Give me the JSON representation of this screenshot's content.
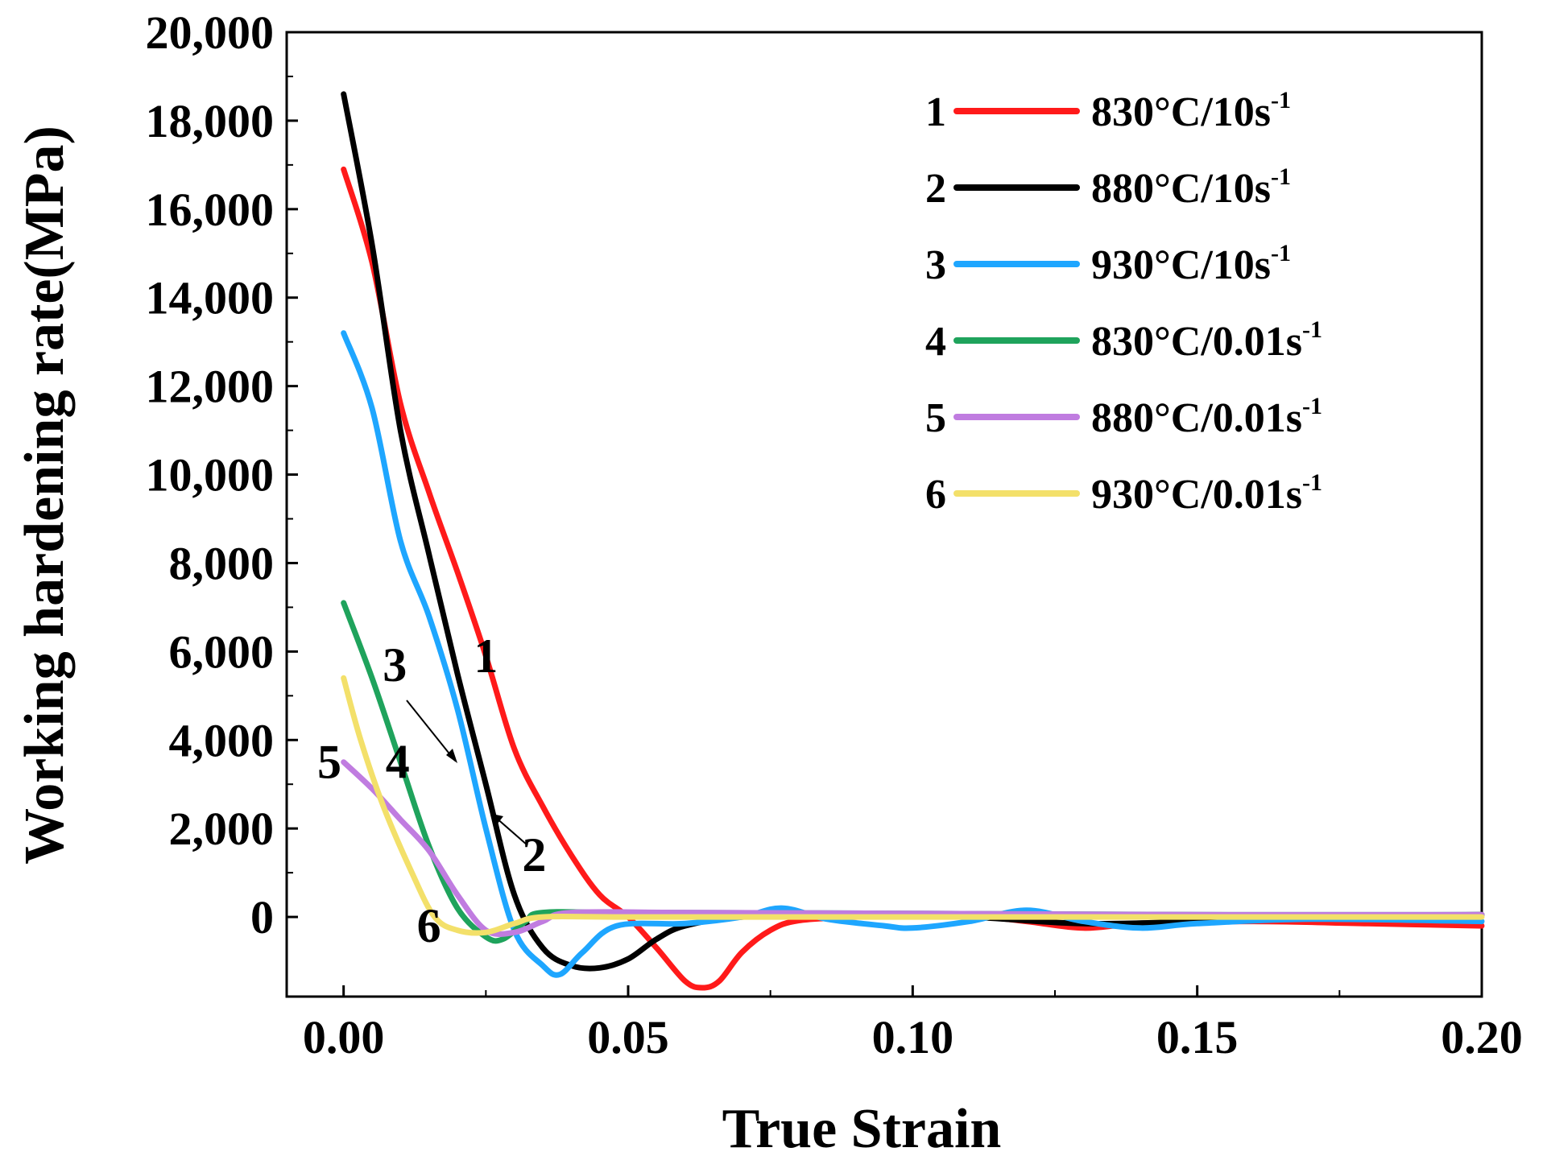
{
  "chart_data": {
    "type": "line",
    "xlabel": "True Strain",
    "ylabel": "Working hardening rate(MPa)",
    "xlim": [
      -0.01,
      0.2
    ],
    "ylim": [
      -1800,
      20000
    ],
    "xticks": [
      "0.00",
      "0.05",
      "0.10",
      "0.15",
      "0.20"
    ],
    "xtick_values": [
      0,
      0.05,
      0.1,
      0.15,
      0.2
    ],
    "yticks": [
      "0",
      "2,000",
      "4,000",
      "6,000",
      "8,000",
      "10,000",
      "12,000",
      "14,000",
      "16,000",
      "18,000",
      "20,000"
    ],
    "ytick_values": [
      0,
      2000,
      4000,
      6000,
      8000,
      10000,
      12000,
      14000,
      16000,
      18000,
      20000
    ],
    "legend_position": "top-right",
    "series": [
      {
        "id": "1",
        "name": "830°C/10s",
        "sup": "-1",
        "color": "#ff1a1a",
        "points": [
          [
            0,
            16900
          ],
          [
            0.005,
            14800
          ],
          [
            0.01,
            11600
          ],
          [
            0.015,
            9600
          ],
          [
            0.02,
            7800
          ],
          [
            0.025,
            5900
          ],
          [
            0.03,
            3800
          ],
          [
            0.035,
            2500
          ],
          [
            0.04,
            1400
          ],
          [
            0.045,
            500
          ],
          [
            0.05,
            0
          ],
          [
            0.055,
            -700
          ],
          [
            0.06,
            -1450
          ],
          [
            0.063,
            -1600
          ],
          [
            0.066,
            -1450
          ],
          [
            0.07,
            -800
          ],
          [
            0.075,
            -300
          ],
          [
            0.08,
            -80
          ],
          [
            0.09,
            0
          ],
          [
            0.1,
            50
          ],
          [
            0.11,
            30
          ],
          [
            0.12,
            -100
          ],
          [
            0.13,
            -250
          ],
          [
            0.14,
            -150
          ],
          [
            0.16,
            -100
          ],
          [
            0.18,
            -150
          ],
          [
            0.2,
            -200
          ]
        ]
      },
      {
        "id": "2",
        "name": "880°C/10s",
        "sup": "-1",
        "color": "#000000",
        "points": [
          [
            0,
            18600
          ],
          [
            0.005,
            15200
          ],
          [
            0.01,
            11000
          ],
          [
            0.015,
            8200
          ],
          [
            0.02,
            5500
          ],
          [
            0.025,
            3000
          ],
          [
            0.03,
            500
          ],
          [
            0.035,
            -700
          ],
          [
            0.04,
            -1100
          ],
          [
            0.045,
            -1150
          ],
          [
            0.05,
            -950
          ],
          [
            0.055,
            -500
          ],
          [
            0.06,
            -200
          ],
          [
            0.07,
            0
          ],
          [
            0.09,
            50
          ],
          [
            0.11,
            0
          ],
          [
            0.13,
            -150
          ],
          [
            0.15,
            -100
          ],
          [
            0.17,
            0
          ],
          [
            0.2,
            50
          ]
        ]
      },
      {
        "id": "3",
        "name": "930°C/10s",
        "sup": "-1",
        "color": "#1ea6ff",
        "points": [
          [
            0,
            13200
          ],
          [
            0.005,
            11500
          ],
          [
            0.01,
            8500
          ],
          [
            0.015,
            6800
          ],
          [
            0.02,
            4700
          ],
          [
            0.025,
            2000
          ],
          [
            0.03,
            -300
          ],
          [
            0.035,
            -1100
          ],
          [
            0.038,
            -1300
          ],
          [
            0.042,
            -800
          ],
          [
            0.048,
            -200
          ],
          [
            0.06,
            -150
          ],
          [
            0.07,
            0
          ],
          [
            0.077,
            200
          ],
          [
            0.085,
            -50
          ],
          [
            0.095,
            -200
          ],
          [
            0.1,
            -250
          ],
          [
            0.11,
            -100
          ],
          [
            0.12,
            150
          ],
          [
            0.13,
            -100
          ],
          [
            0.14,
            -250
          ],
          [
            0.15,
            -150
          ],
          [
            0.17,
            -50
          ],
          [
            0.2,
            -100
          ]
        ]
      },
      {
        "id": "4",
        "name": "830°C/0.01s",
        "sup": "-1",
        "color": "#1fa35c",
        "points": [
          [
            0,
            7100
          ],
          [
            0.005,
            5400
          ],
          [
            0.01,
            3500
          ],
          [
            0.015,
            1600
          ],
          [
            0.02,
            200
          ],
          [
            0.025,
            -450
          ],
          [
            0.028,
            -500
          ],
          [
            0.032,
            -100
          ],
          [
            0.035,
            100
          ],
          [
            0.05,
            100
          ],
          [
            0.1,
            80
          ],
          [
            0.15,
            50
          ],
          [
            0.2,
            50
          ]
        ]
      },
      {
        "id": "5",
        "name": "880°C/0.01s",
        "sup": "-1",
        "color": "#c07ce0",
        "points": [
          [
            0,
            3500
          ],
          [
            0.005,
            2900
          ],
          [
            0.01,
            2200
          ],
          [
            0.015,
            1500
          ],
          [
            0.02,
            500
          ],
          [
            0.025,
            -300
          ],
          [
            0.03,
            -350
          ],
          [
            0.035,
            -100
          ],
          [
            0.04,
            100
          ],
          [
            0.06,
            100
          ],
          [
            0.1,
            80
          ],
          [
            0.15,
            50
          ],
          [
            0.2,
            50
          ]
        ]
      },
      {
        "id": "6",
        "name": "930°C/0.01s",
        "sup": "-1",
        "color": "#f3e06a",
        "points": [
          [
            0,
            5400
          ],
          [
            0.003,
            4000
          ],
          [
            0.007,
            2500
          ],
          [
            0.012,
            1000
          ],
          [
            0.016,
            0
          ],
          [
            0.02,
            -300
          ],
          [
            0.025,
            -350
          ],
          [
            0.03,
            -150
          ],
          [
            0.035,
            0
          ],
          [
            0.05,
            0
          ],
          [
            0.1,
            0
          ],
          [
            0.15,
            0
          ],
          [
            0.2,
            0
          ]
        ]
      }
    ],
    "annotations": [
      {
        "text": "1",
        "x": 0.025,
        "y": 5900
      },
      {
        "text": "3",
        "x": 0.009,
        "y": 5700
      },
      {
        "text": "2",
        "x": 0.0335,
        "y": 1400
      },
      {
        "text": "5",
        "x": -0.0025,
        "y": 3500
      },
      {
        "text": "4",
        "x": 0.0095,
        "y": 3500
      },
      {
        "text": "6",
        "x": 0.015,
        "y": -200
      }
    ]
  }
}
